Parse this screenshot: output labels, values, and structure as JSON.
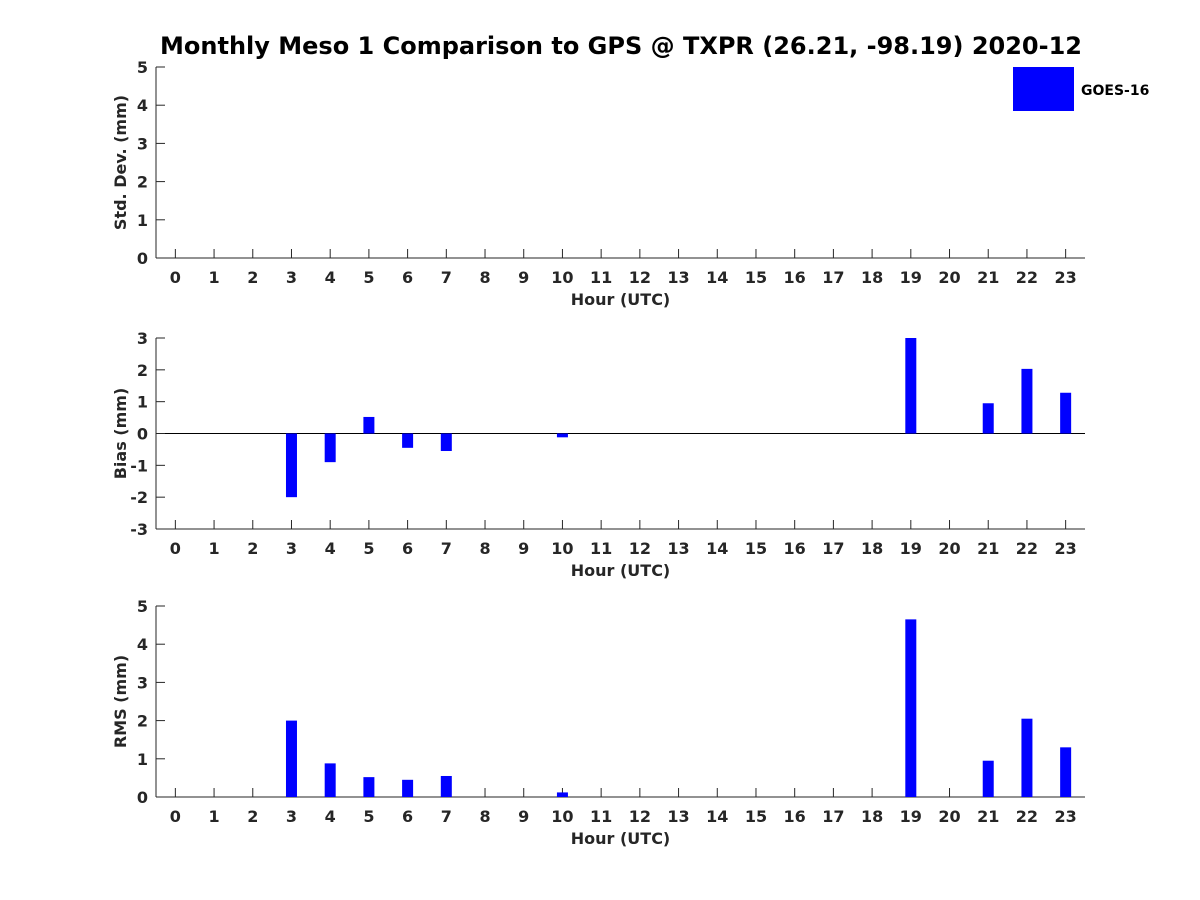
{
  "title": "Monthly Meso 1 Comparison to GPS @ TXPR (26.21, -98.19) 2020-12",
  "legend": {
    "label": "GOES-16",
    "color": "#0000ff",
    "placement": "top-right"
  },
  "chart_data": [
    {
      "type": "bar",
      "name": "std-dev",
      "x": [
        0,
        1,
        2,
        3,
        4,
        5,
        6,
        7,
        8,
        9,
        10,
        11,
        12,
        13,
        14,
        15,
        16,
        17,
        18,
        19,
        20,
        21,
        22,
        23
      ],
      "values": [
        null,
        null,
        null,
        null,
        null,
        null,
        null,
        null,
        null,
        null,
        null,
        null,
        null,
        null,
        null,
        null,
        null,
        null,
        null,
        null,
        null,
        null,
        null,
        null
      ],
      "xlabel": "Hour (UTC)",
      "ylabel": "Std. Dev. (mm)",
      "ylim": [
        0,
        5
      ],
      "yticks": [
        0,
        1,
        2,
        3,
        4,
        5
      ],
      "grid": false
    },
    {
      "type": "bar",
      "name": "bias",
      "x": [
        0,
        1,
        2,
        3,
        4,
        5,
        6,
        7,
        8,
        9,
        10,
        11,
        12,
        13,
        14,
        15,
        16,
        17,
        18,
        19,
        20,
        21,
        22,
        23
      ],
      "values": [
        null,
        null,
        null,
        -2.0,
        -0.9,
        0.52,
        -0.45,
        -0.55,
        null,
        null,
        -0.12,
        null,
        null,
        null,
        null,
        null,
        null,
        null,
        null,
        3.0,
        null,
        0.95,
        2.03,
        1.28
      ],
      "xlabel": "Hour (UTC)",
      "ylabel": "Bias (mm)",
      "ylim": [
        -3,
        3
      ],
      "yticks": [
        -3,
        -2,
        -1,
        0,
        1,
        2,
        3
      ],
      "grid": false
    },
    {
      "type": "bar",
      "name": "rms",
      "x": [
        0,
        1,
        2,
        3,
        4,
        5,
        6,
        7,
        8,
        9,
        10,
        11,
        12,
        13,
        14,
        15,
        16,
        17,
        18,
        19,
        20,
        21,
        22,
        23
      ],
      "values": [
        null,
        null,
        null,
        2.0,
        0.88,
        0.52,
        0.45,
        0.55,
        null,
        null,
        0.12,
        null,
        null,
        null,
        null,
        null,
        null,
        null,
        null,
        4.65,
        null,
        0.95,
        2.05,
        1.3
      ],
      "xlabel": "Hour (UTC)",
      "ylabel": "RMS (mm)",
      "ylim": [
        0,
        5
      ],
      "yticks": [
        0,
        1,
        2,
        3,
        4,
        5
      ],
      "grid": false
    }
  ]
}
